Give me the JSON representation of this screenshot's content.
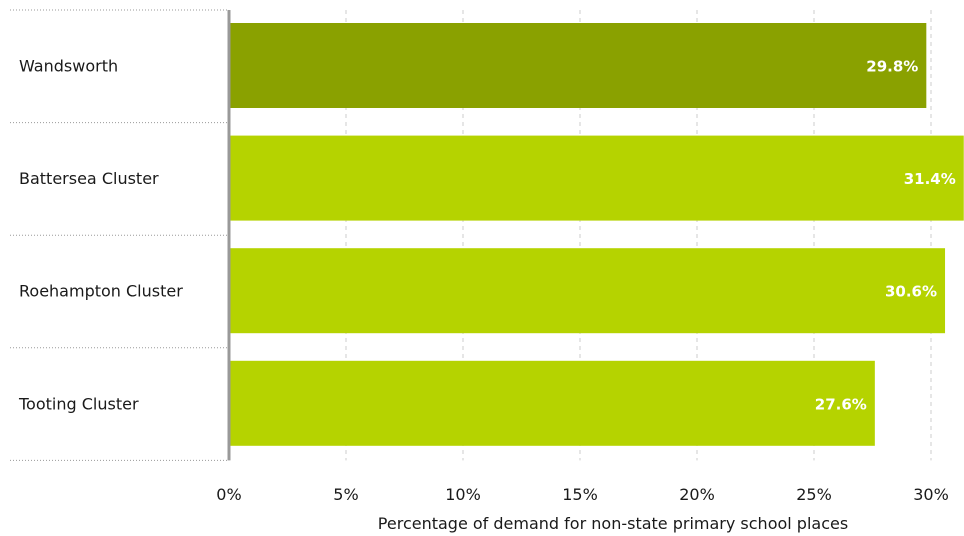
{
  "chart_data": {
    "type": "bar",
    "orientation": "horizontal",
    "categories": [
      "Wandsworth",
      "Battersea Cluster",
      "Roehampton Cluster",
      "Tooting Cluster"
    ],
    "values": [
      29.8,
      31.4,
      30.6,
      27.6
    ],
    "value_labels": [
      "29.8%",
      "31.4%",
      "30.6%",
      "27.6%"
    ],
    "xlabel": "Percentage of demand for non-state primary school places",
    "xlim": [
      0,
      30
    ],
    "xticks": [
      0,
      5,
      10,
      15,
      20,
      25,
      30
    ],
    "xtick_labels": [
      "0%",
      "5%",
      "10%",
      "15%",
      "20%",
      "25%",
      "30%"
    ],
    "grid": "vertical dashed",
    "colors": {
      "highlight": "#8aa100",
      "default": "#b5d300",
      "grid": "#cccccc",
      "axis": "#999999"
    },
    "highlight_index": 0
  }
}
